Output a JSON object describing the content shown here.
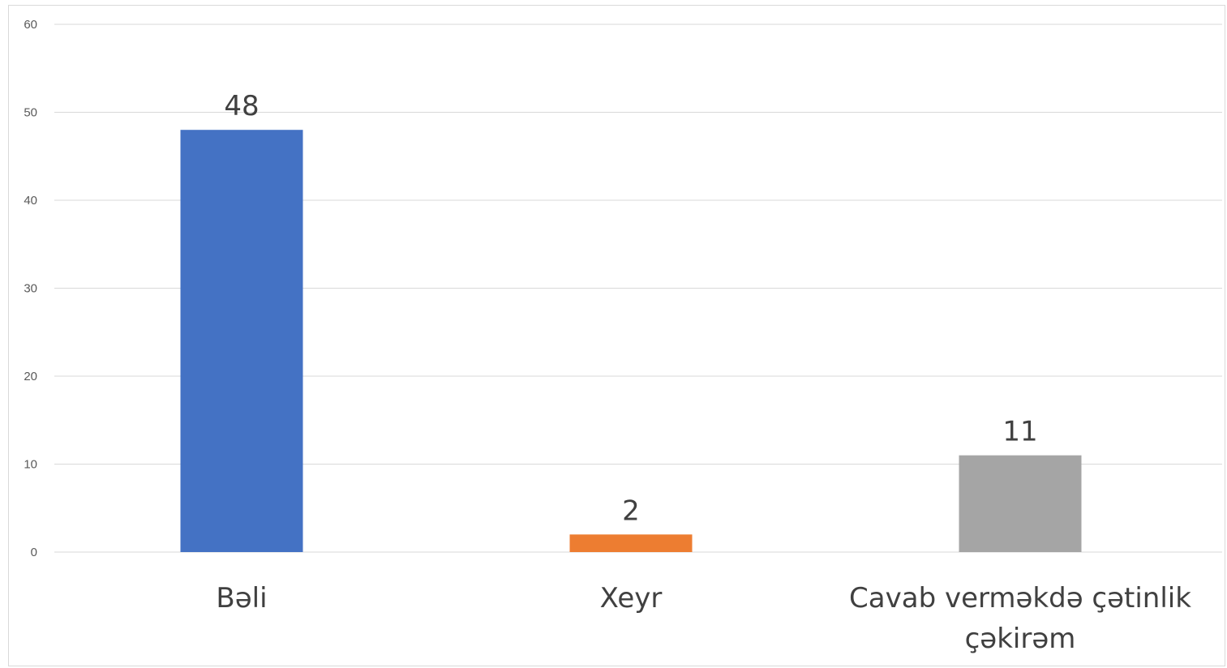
{
  "chart_data": {
    "type": "bar",
    "categories": [
      "Bəli",
      "Xeyr",
      "Cavab verməkdə çətinlik çəkirəm"
    ],
    "category_lines": [
      [
        "Bəli"
      ],
      [
        "Xeyr"
      ],
      [
        "Cavab verməkdə çətinlik",
        "çəkirəm"
      ]
    ],
    "values": [
      48,
      2,
      11
    ],
    "bar_colors": [
      "#4472c4",
      "#ed7d31",
      "#a5a5a5"
    ],
    "data_labels": [
      "48",
      "2",
      "11"
    ],
    "ylim": [
      0,
      60
    ],
    "yticks": [
      0,
      10,
      20,
      30,
      40,
      50,
      60
    ],
    "ytick_labels": [
      "0",
      "10",
      "20",
      "30",
      "40",
      "50",
      "60"
    ],
    "grid": true,
    "legend": "none",
    "title": "",
    "xlabel": "",
    "ylabel": ""
  }
}
